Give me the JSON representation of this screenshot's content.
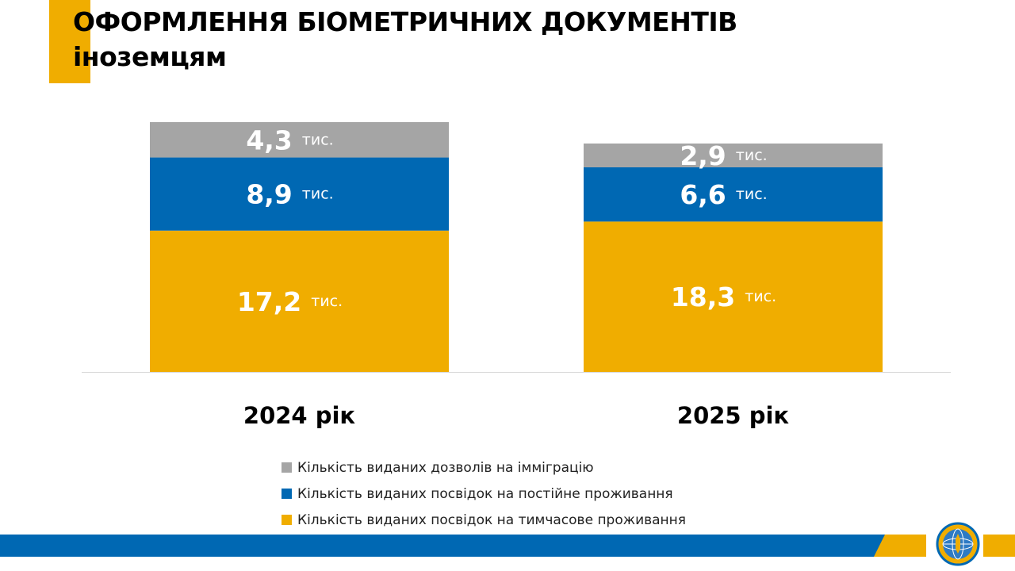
{
  "title_line1": "ОФОРМЛЕННЯ БІОМЕТРИЧНИХ ДОКУМЕНТІВ",
  "title_line2": "іноземцям",
  "unit_label": "тис.",
  "colors": {
    "accent": "#F0AD00",
    "immigration": "#A5A5A5",
    "permanent": "#0068B3",
    "temporary": "#F0AD00",
    "footer_blue": "#0068B3"
  },
  "legend": {
    "items": [
      {
        "label": "Кількість виданих дозволів на імміграцію",
        "color": "#A5A5A5"
      },
      {
        "label": "Кількість виданих посвідок на постійне проживання",
        "color": "#0068B3"
      },
      {
        "label": "Кількість виданих посвідок на тимчасове проживання",
        "color": "#F0AD00"
      }
    ]
  },
  "chart_data": {
    "type": "bar",
    "stacked": true,
    "categories": [
      "2024 рік",
      "2025 рік"
    ],
    "series": [
      {
        "name": "Кількість виданих посвідок на тимчасове проживання",
        "color": "#F0AD00",
        "values": [
          17.2,
          18.3
        ],
        "labels": [
          "17,2",
          "18,3"
        ]
      },
      {
        "name": "Кількість виданих посвідок на постійне проживання",
        "color": "#0068B3",
        "values": [
          8.9,
          6.6
        ],
        "labels": [
          "8,9",
          "6,6"
        ]
      },
      {
        "name": "Кількість виданих дозволів на імміграцію",
        "color": "#A5A5A5",
        "values": [
          4.3,
          2.9
        ],
        "labels": [
          "4,3",
          "2,9"
        ]
      }
    ],
    "unit": "тис.",
    "ylim": [
      0,
      30.4
    ],
    "grid": false,
    "legend_position": "bottom"
  }
}
